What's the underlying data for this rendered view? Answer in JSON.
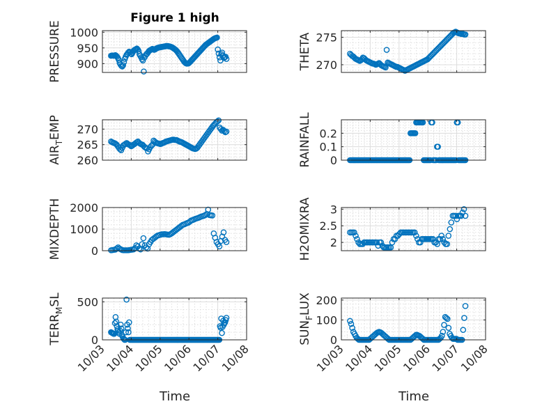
{
  "figure": {
    "title": "Figure 1 high",
    "colors": {
      "marker": "#0072bd",
      "axis": "#262626",
      "grid": "#dcdcdc"
    },
    "x_tick_labels": [
      "10/03",
      "10/04",
      "10/05",
      "10/06",
      "10/07",
      "10/08"
    ],
    "x_axis_label": "Time"
  },
  "chart_data": [
    {
      "id": "pressure",
      "type": "scatter",
      "title": "Figure 1 high",
      "ylabel": "PRESSURE",
      "ylim": [
        872,
        1005
      ],
      "yticks": [
        900,
        950,
        1000
      ],
      "xlim": [
        3,
        8
      ],
      "y": [
        925,
        926,
        926,
        925,
        926,
        927,
        925,
        922,
        918,
        912,
        902,
        897,
        893,
        891,
        895,
        905,
        915,
        922,
        928,
        931,
        935,
        938,
        936,
        932,
        930,
        935,
        940,
        943,
        945,
        946,
        948,
        945,
        940,
        930,
        925,
        920,
        914,
        910,
        875,
        920,
        926,
        930,
        932,
        936,
        940,
        942,
        944,
        945,
        947,
        946,
        944,
        945,
        947,
        949,
        950,
        951,
        952,
        952,
        953,
        953,
        954,
        954,
        955,
        955,
        956,
        956,
        956,
        955,
        955,
        954,
        953,
        952,
        950,
        948,
        946,
        944,
        941,
        938,
        934,
        930,
        926,
        922,
        918,
        914,
        910,
        906,
        903,
        901,
        900,
        900,
        901,
        903,
        906,
        909,
        912,
        915,
        918,
        921,
        924,
        927,
        930,
        933,
        936,
        939,
        942,
        945,
        948,
        951,
        954,
        957,
        960,
        962,
        964,
        966,
        968,
        970,
        972,
        974,
        976,
        978,
        980,
        981,
        982,
        983,
        945,
        932,
        920,
        910,
        930,
        935,
        925,
        918,
        920,
        922,
        915
      ]
    },
    {
      "id": "theta",
      "type": "scatter",
      "ylabel": "THETA",
      "ylim": [
        268.6,
        276.2
      ],
      "yticks": [
        270,
        275
      ],
      "xlim": [
        3,
        8
      ],
      "y": [
        272,
        271.8,
        271.6,
        271.5,
        271.3,
        271.1,
        271.0,
        270.9,
        270.8,
        270.7,
        270.8,
        271.0,
        271.3,
        271.2,
        271.0,
        270.8,
        270.7,
        270.6,
        270.5,
        270.4,
        270.3,
        270.2,
        270.2,
        270.1,
        270.0,
        270.1,
        270.2,
        270.3,
        270.1,
        269.9,
        269.8,
        269.7,
        269.6,
        269.5,
        272.7,
        270.4,
        270.3,
        270.2,
        270.1,
        270.0,
        269.9,
        269.8,
        269.7,
        269.6,
        269.6,
        269.5,
        269.4,
        269.3,
        269.2,
        269.1,
        269.0,
        268.9,
        269.0,
        269.1,
        269.2,
        269.3,
        269.4,
        269.5,
        269.6,
        269.7,
        269.8,
        269.9,
        270.0,
        270.1,
        270.2,
        270.3,
        270.4,
        270.5,
        270.6,
        270.7,
        270.8,
        270.9,
        271.0,
        271.2,
        271.4,
        271.6,
        271.8,
        272.0,
        272.2,
        272.4,
        272.6,
        272.8,
        273.0,
        273.2,
        273.4,
        273.6,
        273.8,
        274.0,
        274.2,
        274.4,
        274.6,
        274.8,
        275.0,
        275.2,
        275.4,
        275.6,
        275.8,
        275.9,
        276.0,
        275.9,
        275.8,
        275.7,
        275.7,
        275.6,
        275.6,
        275.6,
        275.5,
        275.5
      ]
    },
    {
      "id": "air_temp",
      "type": "scatter",
      "ylabel": "AIR_TEMP",
      "ylim": [
        260,
        273
      ],
      "yticks": [
        260,
        265,
        270
      ],
      "xlim": [
        3,
        8
      ],
      "y": [
        266,
        265.8,
        265.6,
        265.5,
        265.3,
        265.0,
        264.5,
        264.0,
        263.5,
        263.2,
        264.0,
        264.8,
        265.0,
        265.3,
        265.5,
        265.2,
        265.0,
        264.8,
        264.5,
        264.7,
        265.0,
        265.2,
        265.5,
        265.8,
        266.0,
        265.6,
        265.3,
        265.1,
        265.0,
        264.6,
        264.2,
        264.0,
        263.8,
        262.8,
        263.5,
        264.2,
        264.6,
        265.0,
        266.3,
        266.0,
        265.7,
        265.5,
        265.4,
        265.3,
        265.2,
        265.3,
        265.5,
        265.6,
        265.8,
        266.0,
        266.1,
        266.2,
        266.3,
        266.4,
        266.5,
        266.6,
        266.6,
        266.5,
        266.5,
        266.4,
        266.2,
        266.0,
        265.9,
        265.8,
        265.6,
        265.4,
        265.2,
        265.0,
        264.8,
        264.6,
        264.4,
        264.2,
        264.0,
        263.8,
        263.7,
        263.6,
        263.7,
        264.0,
        264.5,
        265.0,
        265.5,
        266.0,
        266.5,
        267.0,
        267.5,
        268.0,
        268.5,
        269.0,
        269.5,
        270.0,
        270.5,
        271.0,
        271.4,
        271.8,
        272.2,
        272.5,
        272.8,
        270.5,
        270.0,
        269.5,
        269.8,
        269.4,
        269.0,
        269.2
      ]
    },
    {
      "id": "rainfall",
      "type": "scatter",
      "ylabel": "RAINFALL",
      "ylim": [
        0,
        0.3
      ],
      "yticks": [
        0,
        0.1,
        0.2
      ],
      "xlim": [
        3,
        8
      ],
      "y": [
        0,
        0,
        0,
        0,
        0,
        0,
        0,
        0,
        0,
        0,
        0,
        0,
        0,
        0,
        0,
        0,
        0,
        0,
        0,
        0,
        0,
        0,
        0,
        0,
        0,
        0,
        0,
        0,
        0,
        0,
        0,
        0,
        0,
        0,
        0,
        0,
        0,
        0,
        0,
        0,
        0,
        0,
        0,
        0,
        0,
        0,
        0,
        0,
        0,
        0,
        0,
        0,
        0,
        0,
        0,
        0,
        0,
        0,
        0,
        0,
        0,
        0,
        0,
        0,
        0.2,
        0.2,
        0.2,
        0.2,
        0.2,
        0.2,
        0.28,
        0.28,
        0.28,
        0.28,
        0.28,
        0.28,
        0.28,
        0.28,
        0,
        0,
        0,
        0,
        0,
        0,
        0,
        0,
        0.28,
        0.28,
        0,
        0,
        0,
        0,
        0.1,
        0.1,
        0,
        0,
        0,
        0,
        0,
        0,
        0,
        0,
        0,
        0,
        0,
        0,
        0,
        0,
        0,
        0,
        0,
        0,
        0,
        0.28,
        0.28,
        0,
        0,
        0,
        0,
        0,
        0,
        0,
        0
      ]
    },
    {
      "id": "mixdepth",
      "type": "scatter",
      "ylabel": "MIXDEPTH",
      "ylim": [
        0,
        2000
      ],
      "yticks": [
        0,
        1000,
        2000
      ],
      "xlim": [
        3,
        8
      ],
      "y": [
        20,
        30,
        40,
        50,
        100,
        150,
        100,
        60,
        30,
        20,
        20,
        20,
        20,
        30,
        40,
        50,
        60,
        120,
        250,
        200,
        100,
        60,
        300,
        580,
        250,
        150,
        100,
        300,
        400,
        500,
        550,
        600,
        650,
        700,
        720,
        740,
        760,
        760,
        770,
        760,
        750,
        740,
        760,
        800,
        850,
        900,
        950,
        1000,
        1050,
        1100,
        1150,
        1200,
        1220,
        1250,
        1280,
        1300,
        1350,
        1400,
        1420,
        1450,
        1480,
        1500,
        1520,
        1550,
        1580,
        1600,
        1620,
        1650,
        1700,
        1900,
        1650,
        1640,
        1630,
        800,
        600,
        400,
        300,
        200,
        450,
        650,
        850,
        500,
        400
      ]
    },
    {
      "id": "h2omixra",
      "type": "scatter",
      "ylabel": "H2OMIXRA",
      "ylim": [
        1.75,
        3.05
      ],
      "yticks": [
        2,
        2.5,
        3
      ],
      "xlim": [
        3,
        8
      ],
      "y": [
        2.3,
        2.3,
        2.3,
        2.3,
        2.2,
        2.1,
        2.0,
        1.95,
        1.95,
        1.95,
        2.0,
        2.0,
        2.0,
        2.0,
        2.0,
        2.0,
        2.0,
        2.0,
        2.0,
        2.0,
        1.9,
        2.0,
        2.0,
        1.9,
        1.85,
        1.85,
        1.85,
        1.85,
        1.85,
        1.85,
        2.0,
        2.1,
        2.1,
        2.2,
        2.2,
        2.25,
        2.3,
        2.3,
        2.3,
        2.3,
        2.3,
        2.3,
        2.3,
        2.3,
        2.3,
        2.3,
        2.3,
        2.2,
        2.1,
        2.0,
        2.0,
        2.1,
        2.1,
        2.1,
        2.1,
        2.1,
        2.1,
        2.1,
        2.1,
        2.1,
        2.0,
        2.0,
        1.95,
        2.1,
        2.1,
        2.2,
        2.1,
        2.0,
        1.95,
        1.95,
        2.2,
        2.4,
        2.6,
        2.8,
        2.8,
        2.8,
        2.7,
        2.8,
        2.8,
        2.8,
        2.9,
        3.0,
        2.8
      ]
    },
    {
      "id": "terr_msl",
      "type": "scatter",
      "ylabel": "TERR_MSL",
      "ylim": [
        0,
        550
      ],
      "yticks": [
        0,
        500
      ],
      "xlim": [
        3,
        8
      ],
      "y": [
        100,
        95,
        90,
        85,
        80,
        80,
        220,
        300,
        240,
        180,
        140,
        120,
        100,
        80,
        120,
        200,
        150,
        60,
        40,
        20,
        10,
        0,
        0,
        100,
        530,
        200,
        150,
        100,
        230,
        0,
        0,
        0,
        0,
        0,
        0,
        0,
        0,
        0,
        0,
        0,
        0,
        0,
        0,
        0,
        0,
        0,
        0,
        0,
        0,
        0,
        0,
        0,
        0,
        0,
        0,
        0,
        0,
        0,
        0,
        0,
        0,
        0,
        0,
        0,
        0,
        0,
        0,
        0,
        0,
        0,
        0,
        0,
        0,
        0,
        0,
        0,
        0,
        0,
        0,
        0,
        0,
        0,
        0,
        0,
        0,
        0,
        0,
        0,
        0,
        0,
        0,
        0,
        0,
        0,
        0,
        0,
        0,
        0,
        0,
        0,
        0,
        0,
        0,
        0,
        0,
        0,
        0,
        0,
        0,
        0,
        0,
        0,
        0,
        0,
        0,
        0,
        0,
        0,
        0,
        0,
        0,
        0,
        0,
        0,
        0,
        0,
        0,
        0,
        0,
        0,
        0,
        0,
        0,
        0,
        0,
        0,
        0,
        0,
        0,
        0,
        0,
        0,
        0,
        0,
        0,
        0,
        0,
        0,
        0,
        0,
        0,
        0,
        0,
        0,
        0,
        0,
        0,
        0,
        0,
        0,
        0,
        0,
        0,
        0,
        0,
        0,
        0,
        0,
        0,
        180,
        160,
        280,
        90,
        170,
        250,
        200,
        220,
        230,
        260,
        290
      ]
    },
    {
      "id": "sun_flux",
      "type": "scatter",
      "ylabel": "SUN_FLUX",
      "ylim": [
        0,
        210
      ],
      "yticks": [
        0,
        100,
        200
      ],
      "xlim": [
        3,
        8
      ],
      "y": [
        95,
        80,
        60,
        40,
        30,
        20,
        10,
        5,
        0,
        0,
        0,
        0,
        0,
        0,
        0,
        0,
        0,
        0,
        5,
        10,
        15,
        20,
        25,
        30,
        35,
        38,
        40,
        38,
        35,
        30,
        25,
        20,
        15,
        10,
        5,
        0,
        0,
        0,
        0,
        0,
        0,
        0,
        0,
        0,
        0,
        0,
        0,
        0,
        0,
        0,
        0,
        0,
        0,
        0,
        0,
        5,
        10,
        15,
        20,
        25,
        25,
        22,
        20,
        15,
        10,
        5,
        0,
        0,
        0,
        0,
        0,
        0,
        0,
        0,
        0,
        0,
        0,
        0,
        0,
        0,
        5,
        10,
        20,
        40,
        75,
        115,
        110,
        105,
        60,
        30,
        20,
        10,
        5,
        5,
        5,
        5,
        0,
        0,
        0,
        0,
        0,
        50,
        110,
        170
      ]
    }
  ]
}
